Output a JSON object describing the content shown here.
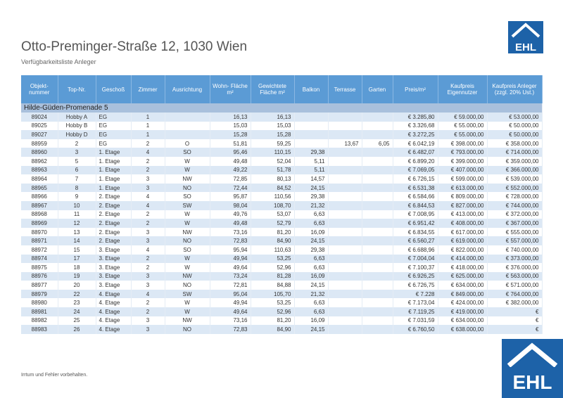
{
  "header": {
    "title": "Otto-Preminger-Straße 12, 1030 Wien",
    "subtitle": "Verfügbarkeitsliste Anleger",
    "logo": "EHL"
  },
  "table": {
    "columns": [
      "Objekt- nummer",
      "Top-Nr.",
      "Geschoß",
      "Zimmer",
      "Ausrichtung",
      "Wohn- Fläche m²",
      "Gewichtete Fläche m²",
      "Balkon",
      "Terrasse",
      "Garten",
      "Preis/m²",
      "Kaufpreis Eigennutzer",
      "Kaufpreis Anleger (zzgl. 20% Ust.)"
    ],
    "section": "Hilde-Güden-Promenade 5",
    "rows": [
      [
        "89024",
        "Hobby A",
        "EG",
        "1",
        null,
        "16,13",
        "16,13",
        null,
        null,
        null,
        "€ 3.285,80",
        "€ 59.000,00",
        "€ 53.000,00"
      ],
      [
        "89025",
        "Hobby B",
        "EG",
        "1",
        null,
        "15,03",
        "15,03",
        null,
        null,
        null,
        "€ 3.326,68",
        "€ 55.000,00",
        "€ 50.000,00"
      ],
      [
        "89027",
        "Hobby D",
        "EG",
        "1",
        null,
        "15,28",
        "15,28",
        null,
        null,
        null,
        "€ 3.272,25",
        "€ 55.000,00",
        "€ 50.000,00"
      ],
      [
        "88959",
        "2",
        "EG",
        "2",
        "O",
        "51,81",
        "59,25",
        null,
        "13,67",
        "6,05",
        "€ 6.042,19",
        "€ 398.000,00",
        "€ 358.000,00"
      ],
      [
        "88960",
        "3",
        "1. Etage",
        "4",
        "SO",
        "95,46",
        "110,15",
        "29,38",
        null,
        null,
        "€ 6.482,07",
        "€ 793.000,00",
        "€ 714.000,00"
      ],
      [
        "88962",
        "5",
        "1. Etage",
        "2",
        "W",
        "49,48",
        "52,04",
        "5,11",
        null,
        null,
        "€ 6.899,20",
        "€ 399.000,00",
        "€ 359.000,00"
      ],
      [
        "88963",
        "6",
        "1. Etage",
        "2",
        "W",
        "49,22",
        "51,78",
        "5,11",
        null,
        null,
        "€ 7.069,05",
        "€ 407.000,00",
        "€ 366.000,00"
      ],
      [
        "88964",
        "7",
        "1. Etage",
        "3",
        "NW",
        "72,85",
        "80,13",
        "14,57",
        null,
        null,
        "€ 6.726,15",
        "€ 599.000,00",
        "€ 539.000,00"
      ],
      [
        "88965",
        "8",
        "1. Etage",
        "3",
        "NO",
        "72,44",
        "84,52",
        "24,15",
        null,
        null,
        "€ 6.531,38",
        "€ 613.000,00",
        "€ 552.000,00"
      ],
      [
        "88966",
        "9",
        "2. Etage",
        "4",
        "SO",
        "95,87",
        "110,56",
        "29,38",
        null,
        null,
        "€ 6.584,66",
        "€ 809.000,00",
        "€ 728.000,00"
      ],
      [
        "88967",
        "10",
        "2. Etage",
        "4",
        "SW",
        "98,04",
        "108,70",
        "21,32",
        null,
        null,
        "€ 6.844,53",
        "€ 827.000,00",
        "€ 744.000,00"
      ],
      [
        "88968",
        "11",
        "2. Etage",
        "2",
        "W",
        "49,76",
        "53,07",
        "6,63",
        null,
        null,
        "€ 7.008,95",
        "€ 413.000,00",
        "€ 372.000,00"
      ],
      [
        "88969",
        "12",
        "2. Etage",
        "2",
        "W",
        "49,48",
        "52,79",
        "6,63",
        null,
        null,
        "€ 6.951,42",
        "€ 408.000,00",
        "€ 367.000,00"
      ],
      [
        "88970",
        "13",
        "2. Etage",
        "3",
        "NW",
        "73,16",
        "81,20",
        "16,09",
        null,
        null,
        "€ 6.834,55",
        "€ 617.000,00",
        "€ 555.000,00"
      ],
      [
        "88971",
        "14",
        "2. Etage",
        "3",
        "NO",
        "72,83",
        "84,90",
        "24,15",
        null,
        null,
        "€ 6.560,27",
        "€ 619.000,00",
        "€ 557.000,00"
      ],
      [
        "88972",
        "15",
        "3. Etage",
        "4",
        "SO",
        "95,94",
        "110,63",
        "29,38",
        null,
        null,
        "€ 6.688,96",
        "€ 822.000,00",
        "€ 740.000,00"
      ],
      [
        "88974",
        "17",
        "3. Etage",
        "2",
        "W",
        "49,94",
        "53,25",
        "6,63",
        null,
        null,
        "€ 7.004,04",
        "€ 414.000,00",
        "€ 373.000,00"
      ],
      [
        "88975",
        "18",
        "3. Etage",
        "2",
        "W",
        "49,64",
        "52,96",
        "6,63",
        null,
        null,
        "€ 7.100,37",
        "€ 418.000,00",
        "€ 376.000,00"
      ],
      [
        "88976",
        "19",
        "3. Etage",
        "3",
        "NW",
        "73,24",
        "81,28",
        "16,09",
        null,
        null,
        "€ 6.926,25",
        "€ 625.000,00",
        "€ 563.000,00"
      ],
      [
        "88977",
        "20",
        "3. Etage",
        "3",
        "NO",
        "72,81",
        "84,88",
        "24,15",
        null,
        null,
        "€ 6.726,75",
        "€ 634.000,00",
        "€ 571.000,00"
      ],
      [
        "88979",
        "22",
        "4. Etage",
        "4",
        "SW",
        "95,04",
        "105,70",
        "21,32",
        null,
        null,
        "€ 7.228",
        "€ 849.000,00",
        "€ 764.000,00"
      ],
      [
        "88980",
        "23",
        "4. Etage",
        "2",
        "W",
        "49,94",
        "53,25",
        "6,63",
        null,
        null,
        "€ 7.173,04",
        "€ 424.000,00",
        "€ 382.000,00"
      ],
      [
        "88981",
        "24",
        "4. Etage",
        "2",
        "W",
        "49,64",
        "52,96",
        "6,63",
        null,
        null,
        "€ 7.119,25",
        "€ 419.000,00",
        "€"
      ],
      [
        "88982",
        "25",
        "4. Etage",
        "3",
        "NW",
        "73,16",
        "81,20",
        "16,09",
        null,
        null,
        "€ 7.031,59",
        "€ 634.000,00",
        "€"
      ],
      [
        "88983",
        "26",
        "4. Etage",
        "3",
        "NO",
        "72,83",
        "84,90",
        "24,15",
        null,
        null,
        "€ 6.760,50",
        "€ 638.000,00",
        "€"
      ]
    ]
  },
  "footer": {
    "note": "Irrtum und Fehler vorbehalten.",
    "logo": "EHL"
  }
}
